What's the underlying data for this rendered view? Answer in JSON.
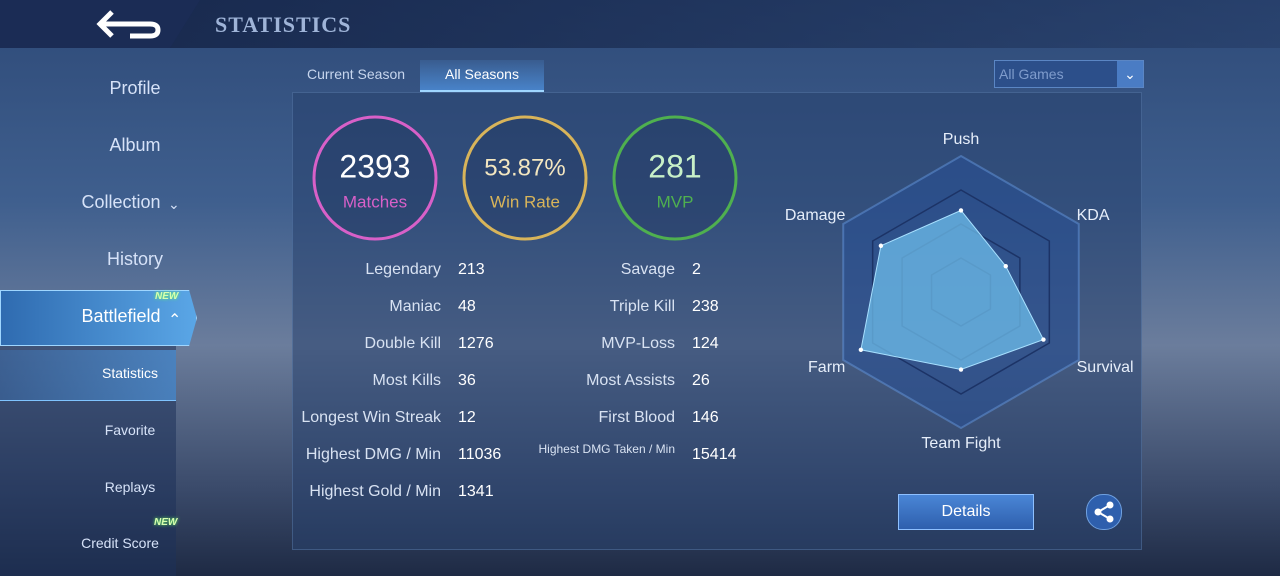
{
  "header": {
    "title": "STATISTICS"
  },
  "sidebar": {
    "items": [
      "Profile",
      "Album",
      "Collection",
      "History",
      "Battlefield"
    ],
    "sub_items": [
      "Statistics",
      "Favorite",
      "Replays",
      "Credit Score"
    ],
    "badges": [
      "NEW",
      "NEW"
    ]
  },
  "tabs": [
    "Current Season",
    "All Seasons"
  ],
  "filter": "All Games",
  "summary": [
    {
      "value": 2393,
      "label": "Matches",
      "color": "#d860c8"
    },
    {
      "value": 53.87,
      "value_label": "53.87%",
      "label": "Win Rate",
      "color": "#d8b45a"
    },
    {
      "value": 281,
      "label": "MVP",
      "color": "#4fb04f"
    }
  ],
  "stats": {
    "left": [
      [
        "Legendary",
        213
      ],
      [
        "Maniac",
        48
      ],
      [
        "Double Kill",
        1276
      ],
      [
        "Most Kills",
        36
      ],
      [
        "Longest Win Streak",
        12
      ],
      [
        "Highest DMG / Min",
        11036
      ],
      [
        "Highest Gold / Min",
        1341
      ]
    ],
    "right": [
      [
        "Savage",
        2
      ],
      [
        "Triple Kill",
        238
      ],
      [
        "MVP-Loss",
        124
      ],
      [
        "Most Assists",
        26
      ],
      [
        "First Blood",
        146
      ],
      [
        "Highest DMG Taken / Min",
        15414
      ]
    ]
  },
  "radar": {
    "axes": [
      "Push",
      "KDA",
      "Survival",
      "Team Fight",
      "Farm",
      "Damage"
    ],
    "values": [
      60,
      38,
      70,
      57,
      85,
      68
    ],
    "max": 100
  },
  "button": "Details"
}
